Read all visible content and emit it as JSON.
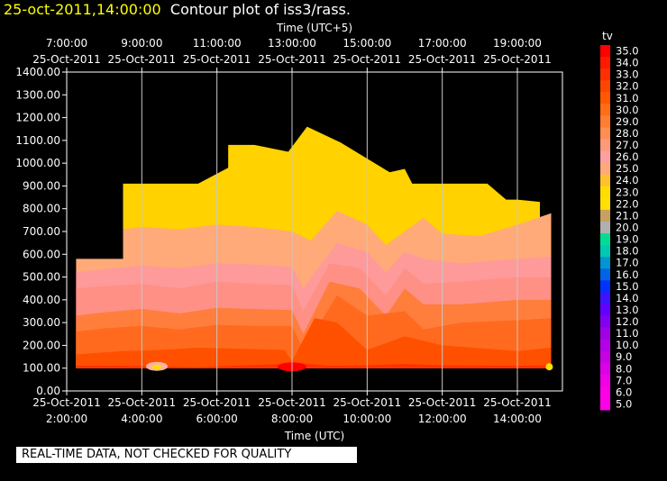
{
  "header": {
    "timestamp": "25-oct-2011,14:00:00",
    "title": "Contour plot of iss3/rass."
  },
  "notice": "REAL-TIME DATA, NOT CHECKED FOR QUALITY",
  "colors": {
    "background": "#000000",
    "timestamp": "#ffff00",
    "grid": "#c8c8c8"
  },
  "chart_data": {
    "type": "heatmap",
    "variable": "tv",
    "x_top_label": "Time (UTC+5)",
    "x_bottom_label": "Time (UTC)",
    "x_range_hours_utc": [
      1,
      14.2
    ],
    "y_range": [
      0,
      1400
    ],
    "y_ticks": [
      "1400.00",
      "1300.00",
      "1200.00",
      "1100.00",
      "1000.00",
      "900.00",
      "800.00",
      "700.00",
      "600.00",
      "500.00",
      "400.00",
      "300.00",
      "200.00",
      "100.00",
      "0.00"
    ],
    "x_ticks_bottom": [
      {
        "hour": 1,
        "date": "25-Oct-2011",
        "time": "2:00:00"
      },
      {
        "hour": 3,
        "date": "25-Oct-2011",
        "time": "4:00:00"
      },
      {
        "hour": 5,
        "date": "25-Oct-2011",
        "time": "6:00:00"
      },
      {
        "hour": 7,
        "date": "25-Oct-2011",
        "time": "8:00:00"
      },
      {
        "hour": 9,
        "date": "25-Oct-2011",
        "time": "10:00:00"
      },
      {
        "hour": 11,
        "date": "25-Oct-2011",
        "time": "12:00:00"
      },
      {
        "hour": 13,
        "date": "25-Oct-2011",
        "time": "14:00:00"
      }
    ],
    "x_ticks_top": [
      {
        "hour": 1,
        "date": "25-Oct-2011",
        "time": "7:00:00"
      },
      {
        "hour": 3,
        "date": "25-Oct-2011",
        "time": "9:00:00"
      },
      {
        "hour": 5,
        "date": "25-Oct-2011",
        "time": "11:00:00"
      },
      {
        "hour": 7,
        "date": "25-Oct-2011",
        "time": "13:00:00"
      },
      {
        "hour": 9,
        "date": "25-Oct-2011",
        "time": "15:00:00"
      },
      {
        "hour": 11,
        "date": "25-Oct-2011",
        "time": "17:00:00"
      },
      {
        "hour": 13,
        "date": "25-Oct-2011",
        "time": "19:00:00"
      }
    ],
    "legend": {
      "title": "tv",
      "levels": [
        "35.0",
        "34.0",
        "33.0",
        "32.0",
        "31.0",
        "30.0",
        "29.0",
        "28.0",
        "27.0",
        "26.0",
        "25.0",
        "24.0",
        "23.0",
        "22.0",
        "21.0",
        "20.0",
        "19.0",
        "18.0",
        "17.0",
        "16.0",
        "15.0",
        "14.0",
        "13.0",
        "12.0",
        "11.0",
        "10.0",
        "9.0",
        "8.0",
        "7.0",
        "6.0",
        "5.0"
      ],
      "colors": [
        "#ff0000",
        "#ff1a00",
        "#ff3000",
        "#ff4600",
        "#ff5a00",
        "#ff6e14",
        "#ff7e30",
        "#ff8e50",
        "#ff9a78",
        "#ffa0a0",
        "#ffaa78",
        "#ffc030",
        "#ffdc00",
        "#ffe000",
        "#c8a060",
        "#b0b0b0",
        "#00dc96",
        "#00c8b4",
        "#0096d2",
        "#0064e6",
        "#0032ff",
        "#3c14ff",
        "#6400ff",
        "#8200f0",
        "#a000e6",
        "#b400e6",
        "#c800e6",
        "#dc00e6",
        "#f000e6",
        "#ff00e6",
        "#ff00e6"
      ]
    },
    "bands": [
      {
        "label": "31.0",
        "color": "#ff3000",
        "upper": [
          [
            1.25,
            110
          ],
          [
            2.5,
            110
          ],
          [
            4.5,
            105
          ],
          [
            6.8,
            118
          ],
          [
            7.2,
            122
          ],
          [
            8.0,
            110
          ],
          [
            9.0,
            112
          ],
          [
            10.0,
            118
          ],
          [
            11.0,
            112
          ],
          [
            13.0,
            110
          ],
          [
            13.9,
            112
          ]
        ]
      },
      {
        "label": "30.0",
        "color": "#ff5000",
        "upper": [
          [
            1.25,
            160
          ],
          [
            2.5,
            175
          ],
          [
            3.5,
            180
          ],
          [
            4.5,
            190
          ],
          [
            6.8,
            180
          ],
          [
            7.0,
            130
          ],
          [
            7.6,
            320
          ],
          [
            8.2,
            300
          ],
          [
            9.0,
            180
          ],
          [
            10.0,
            240
          ],
          [
            11.0,
            200
          ],
          [
            13.0,
            175
          ],
          [
            13.9,
            190
          ]
        ]
      },
      {
        "label": "29.0",
        "color": "#ff6a1e",
        "upper": [
          [
            1.25,
            260
          ],
          [
            2.0,
            275
          ],
          [
            3.0,
            285
          ],
          [
            4.0,
            270
          ],
          [
            5.0,
            290
          ],
          [
            6.0,
            285
          ],
          [
            7.0,
            285
          ],
          [
            7.3,
            180
          ],
          [
            8.2,
            420
          ],
          [
            9.0,
            330
          ],
          [
            10.0,
            350
          ],
          [
            10.5,
            270
          ],
          [
            11.5,
            300
          ],
          [
            13.0,
            310
          ],
          [
            13.9,
            320
          ]
        ]
      },
      {
        "label": "28.0",
        "color": "#ff7e3c",
        "upper": [
          [
            1.25,
            330
          ],
          [
            2.0,
            345
          ],
          [
            3.0,
            360
          ],
          [
            4.0,
            340
          ],
          [
            5.0,
            365
          ],
          [
            6.0,
            360
          ],
          [
            7.0,
            355
          ],
          [
            7.3,
            250
          ],
          [
            8.0,
            480
          ],
          [
            8.8,
            450
          ],
          [
            9.5,
            330
          ],
          [
            10.0,
            450
          ],
          [
            10.5,
            380
          ],
          [
            11.5,
            380
          ],
          [
            13.0,
            400
          ],
          [
            13.9,
            400
          ]
        ]
      },
      {
        "label": "27.0",
        "color": "#ff9086",
        "upper": [
          [
            1.25,
            450
          ],
          [
            2.0,
            460
          ],
          [
            3.0,
            470
          ],
          [
            4.0,
            450
          ],
          [
            5.0,
            480
          ],
          [
            6.0,
            470
          ],
          [
            7.0,
            465
          ],
          [
            7.3,
            350
          ],
          [
            8.0,
            560
          ],
          [
            8.8,
            540
          ],
          [
            9.5,
            420
          ],
          [
            10.0,
            540
          ],
          [
            10.5,
            470
          ],
          [
            11.5,
            480
          ],
          [
            13.0,
            500
          ],
          [
            13.9,
            500
          ]
        ]
      },
      {
        "label": "26.0",
        "color": "#ff9a9a",
        "upper": [
          [
            1.25,
            520
          ],
          [
            2.0,
            535
          ],
          [
            3.0,
            550
          ],
          [
            4.0,
            540
          ],
          [
            5.0,
            560
          ],
          [
            6.0,
            555
          ],
          [
            7.0,
            545
          ],
          [
            7.3,
            450
          ],
          [
            8.2,
            650
          ],
          [
            9.0,
            610
          ],
          [
            9.5,
            520
          ],
          [
            10.0,
            610
          ],
          [
            10.5,
            580
          ],
          [
            11.5,
            560
          ],
          [
            13.0,
            580
          ],
          [
            13.9,
            590
          ]
        ]
      },
      {
        "label": "25.0",
        "color": "#ffaa78",
        "upper": [
          [
            1.25,
            580
          ],
          [
            2.5,
            580
          ],
          [
            2.5,
            710
          ],
          [
            3.0,
            720
          ],
          [
            4.0,
            710
          ],
          [
            5.0,
            730
          ],
          [
            6.0,
            720
          ],
          [
            7.0,
            700
          ],
          [
            7.5,
            660
          ],
          [
            8.2,
            790
          ],
          [
            9.0,
            730
          ],
          [
            9.5,
            640
          ],
          [
            10.0,
            700
          ],
          [
            10.5,
            760
          ],
          [
            11.0,
            690
          ],
          [
            12.0,
            680
          ],
          [
            13.0,
            730
          ],
          [
            13.9,
            780
          ]
        ]
      },
      {
        "label": "24.0",
        "color": "#ffd200",
        "upper": [
          [
            2.5,
            910
          ],
          [
            4.5,
            910
          ],
          [
            5.3,
            980
          ],
          [
            5.3,
            1080
          ],
          [
            6.0,
            1080
          ],
          [
            6.9,
            1050
          ],
          [
            7.4,
            1160
          ],
          [
            8.3,
            1090
          ],
          [
            9.6,
            960
          ],
          [
            10.0,
            975
          ],
          [
            10.2,
            910
          ],
          [
            12.2,
            910
          ],
          [
            12.7,
            840
          ],
          [
            13.0,
            840
          ],
          [
            13.6,
            830
          ]
        ]
      }
    ]
  }
}
